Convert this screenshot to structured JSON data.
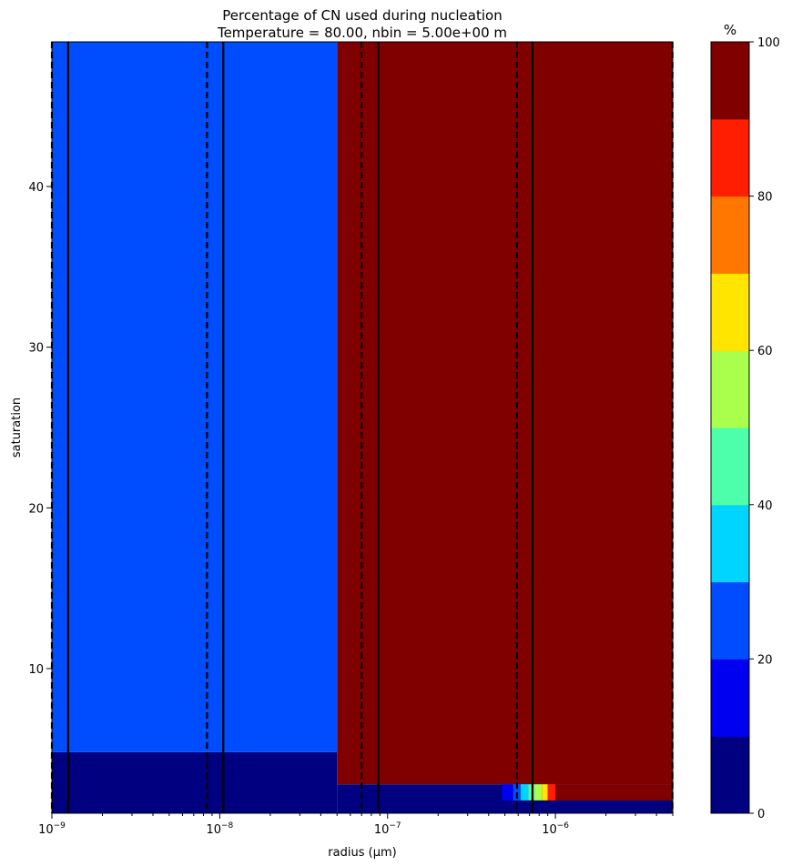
{
  "chart_data": {
    "type": "heatmap",
    "title": "Percentage of CN used during nucleation",
    "subtitle": "Temperature = 80.00, nbin = 5.00e+00 m",
    "xlabel": "radius (µm)",
    "ylabel": "saturation",
    "xscale": "log",
    "xlim": [
      1e-09,
      5e-06
    ],
    "ylim": [
      1,
      49
    ],
    "x_ticks": [
      {
        "value": 1e-09,
        "base": "10",
        "exp": "−9"
      },
      {
        "value": 1e-08,
        "base": "10",
        "exp": "−8"
      },
      {
        "value": 1e-07,
        "base": "10",
        "exp": "−7"
      },
      {
        "value": 1e-06,
        "base": "10",
        "exp": "−6"
      }
    ],
    "y_ticks": [
      "10",
      "20",
      "30",
      "40"
    ],
    "y_tick_values": [
      10,
      20,
      30,
      40
    ],
    "colorbar": {
      "label": "%",
      "levels": [
        0,
        10,
        20,
        30,
        40,
        50,
        60,
        70,
        80,
        90,
        100
      ],
      "colors": [
        "#000080",
        "#0000f1",
        "#004dff",
        "#00d5ff",
        "#4dffaa",
        "#aaff4d",
        "#ffe500",
        "#ff7700",
        "#ff1e00",
        "#800000"
      ],
      "tick_values": [
        0,
        20,
        40,
        60,
        80,
        100
      ],
      "tick_labels": [
        "0",
        "20",
        "40",
        "60",
        "80",
        "100"
      ]
    },
    "regions": [
      {
        "x0": 1e-09,
        "x1": 5e-08,
        "y0": 1,
        "y1": 4.8,
        "value": 0
      },
      {
        "x0": 1e-09,
        "x1": 5e-08,
        "y0": 4.8,
        "y1": 49,
        "value": 25
      },
      {
        "x0": 5e-08,
        "x1": 5e-06,
        "y0": 1,
        "y1": 2.8,
        "value": 0
      },
      {
        "x0": 5e-08,
        "x1": 5e-06,
        "y0": 2.8,
        "y1": 49,
        "value": 100
      },
      {
        "x0": 1e-06,
        "x1": 5e-06,
        "y0": 1.8,
        "y1": 2.8,
        "value": 100
      },
      {
        "x0": 4.8e-07,
        "x1": 5.6e-07,
        "y0": 1.8,
        "y1": 2.8,
        "value": 15
      },
      {
        "x0": 5.6e-07,
        "x1": 6.2e-07,
        "y0": 1.8,
        "y1": 2.8,
        "value": 25
      },
      {
        "x0": 6.2e-07,
        "x1": 6.9e-07,
        "y0": 1.8,
        "y1": 2.8,
        "value": 35
      },
      {
        "x0": 6.9e-07,
        "x1": 7.5e-07,
        "y0": 1.8,
        "y1": 2.8,
        "value": 45
      },
      {
        "x0": 7.5e-07,
        "x1": 8.3e-07,
        "y0": 1.8,
        "y1": 2.8,
        "value": 55
      },
      {
        "x0": 8.3e-07,
        "x1": 9e-07,
        "y0": 1.8,
        "y1": 2.8,
        "value": 65
      },
      {
        "x0": 9e-07,
        "x1": 1e-06,
        "y0": 1.8,
        "y1": 2.8,
        "value": 85
      }
    ],
    "solid_lines_x": [
      1.25e-09,
      1.05e-08,
      8.8e-08,
      7.3e-07
    ],
    "dashed_lines_x": [
      1e-09,
      8.4e-09,
      7e-08,
      5.9e-07,
      4.98e-06
    ],
    "grid": false
  }
}
